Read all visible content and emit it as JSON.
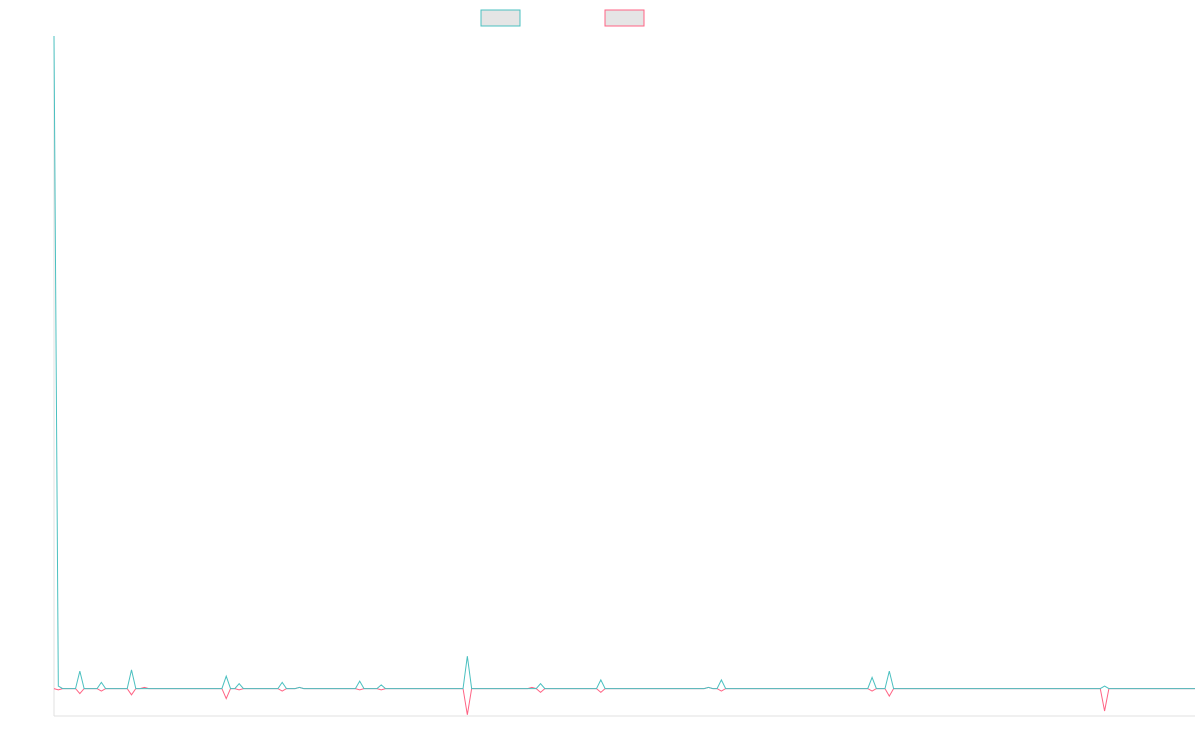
{
  "chart_data": {
    "type": "line",
    "legend": "top",
    "x": [
      0,
      1,
      2,
      5,
      6,
      7,
      10,
      11,
      12,
      17,
      18,
      19,
      20,
      21,
      22,
      39,
      40,
      41,
      42,
      43,
      44,
      52,
      53,
      54,
      56,
      57,
      58,
      70,
      71,
      72,
      75,
      76,
      77,
      95,
      96,
      97,
      110,
      111,
      112,
      113,
      114,
      126,
      127,
      128,
      151,
      152,
      153,
      154,
      155,
      156,
      189,
      190,
      191,
      193,
      194,
      195,
      243,
      244,
      245,
      265
    ],
    "xlim": [
      0,
      265
    ],
    "ylim": [
      -1.1,
      26.2
    ],
    "series": [
      {
        "color": "#4bc0c0",
        "values": [
          26.2,
          0.1,
          0,
          0,
          0.7,
          0,
          0,
          0.25,
          0,
          0,
          0.75,
          0,
          0,
          0,
          0,
          0,
          0.5,
          0,
          0,
          0.2,
          0,
          0,
          0.25,
          0,
          0,
          0.05,
          0,
          0,
          0.3,
          0,
          0,
          0.15,
          0,
          0,
          1.3,
          0,
          0,
          0,
          0,
          0.2,
          0,
          0,
          0.35,
          0,
          0,
          0.05,
          0,
          0,
          0.35,
          0,
          0,
          0.45,
          0,
          0,
          0.7,
          0,
          0,
          0.1,
          0,
          0
        ]
      },
      {
        "color": "#ff6384",
        "values": [
          0,
          -0.05,
          0,
          0,
          -0.2,
          0,
          0,
          -0.1,
          0,
          0,
          -0.25,
          0,
          0,
          0.05,
          0,
          0,
          -0.4,
          0,
          0,
          -0.05,
          0,
          0,
          -0.1,
          0,
          0,
          0.05,
          0,
          0,
          -0.05,
          0,
          0,
          -0.05,
          0,
          0,
          -1.05,
          0,
          0,
          0.05,
          0,
          -0.15,
          0,
          0,
          -0.15,
          0,
          0,
          0.05,
          0,
          0,
          -0.1,
          0,
          0,
          -0.1,
          0,
          0,
          -0.3,
          0,
          0,
          -0.9,
          0,
          0
        ]
      }
    ]
  }
}
